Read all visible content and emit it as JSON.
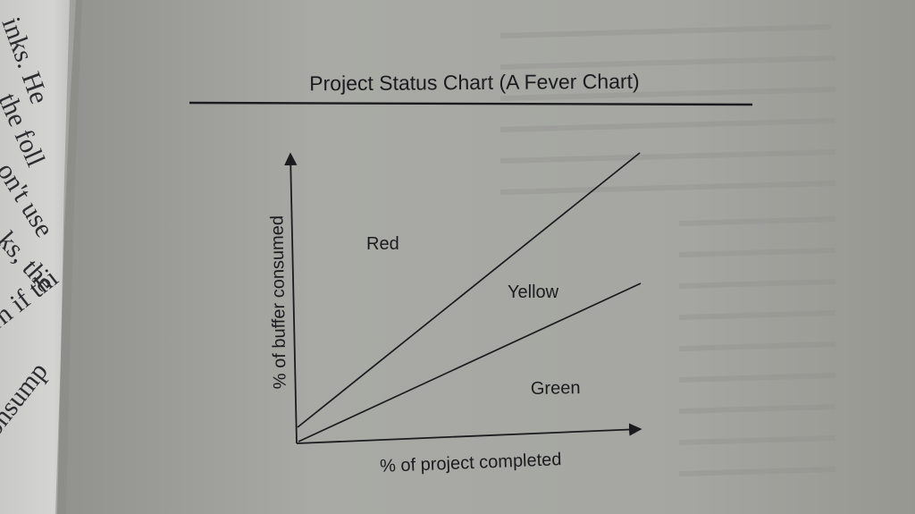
{
  "figure": {
    "title": "Project Status Chart (A Fever Chart)",
    "ylabel": "% of buffer consumed",
    "xlabel": "% of project completed",
    "zones": {
      "red": "Red",
      "yellow": "Yellow",
      "green": "Green"
    }
  },
  "left_page_fragments": [
    "inks. He",
    "the foll",
    "on't use",
    "ks, the",
    "rn if thi",
    "onsump"
  ],
  "colors": {
    "background_page": "#9a9b95",
    "book_page": "#a8a9a3",
    "ink": "#1b1b1f"
  }
}
